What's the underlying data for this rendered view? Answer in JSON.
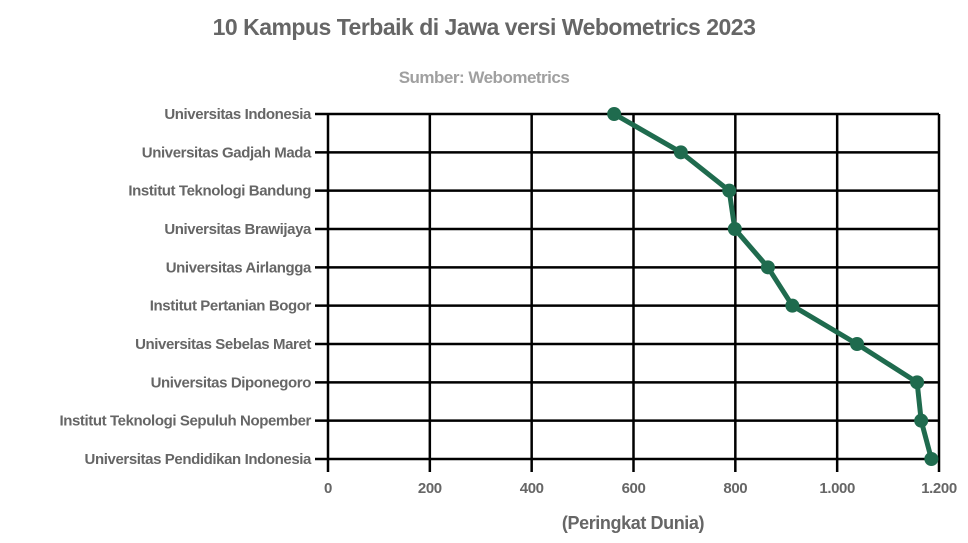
{
  "chart_data": {
    "type": "line",
    "title": "10 Kampus Terbaik di Jawa versi Webometrics 2023",
    "subtitle": "Sumber: Webometrics",
    "xlabel": "(Peringkat Dunia)",
    "ylabel": "",
    "orientation": "horizontal-category-y",
    "categories": [
      "Universitas Indonesia",
      "Universitas Gadjah Mada",
      "Institut Teknologi Bandung",
      "Universitas Brawijaya",
      "Universitas Airlangga",
      "Institut Pertanian Bogor",
      "Universitas Sebelas Maret",
      "Universitas Diponegoro",
      "Institut Teknologi Sepuluh Nopember",
      "Universitas Pendidikan Indonesia"
    ],
    "series": [
      {
        "name": "Peringkat Dunia",
        "color": "#1f6b4e",
        "values": [
          562,
          693,
          788,
          799,
          864,
          912,
          1039,
          1157,
          1165,
          1185
        ]
      }
    ],
    "xlim": [
      0,
      1200
    ],
    "xticks": [
      0,
      200,
      400,
      600,
      800,
      1000,
      1200
    ],
    "xtick_labels": [
      "0",
      "200",
      "400",
      "600",
      "800",
      "1.000",
      "1.200"
    ],
    "grid": true,
    "legend": "none"
  },
  "colors": {
    "line": "#1f6b4e",
    "title": "#666666",
    "subtitle": "#a0a0a0",
    "grid": "#000000"
  }
}
